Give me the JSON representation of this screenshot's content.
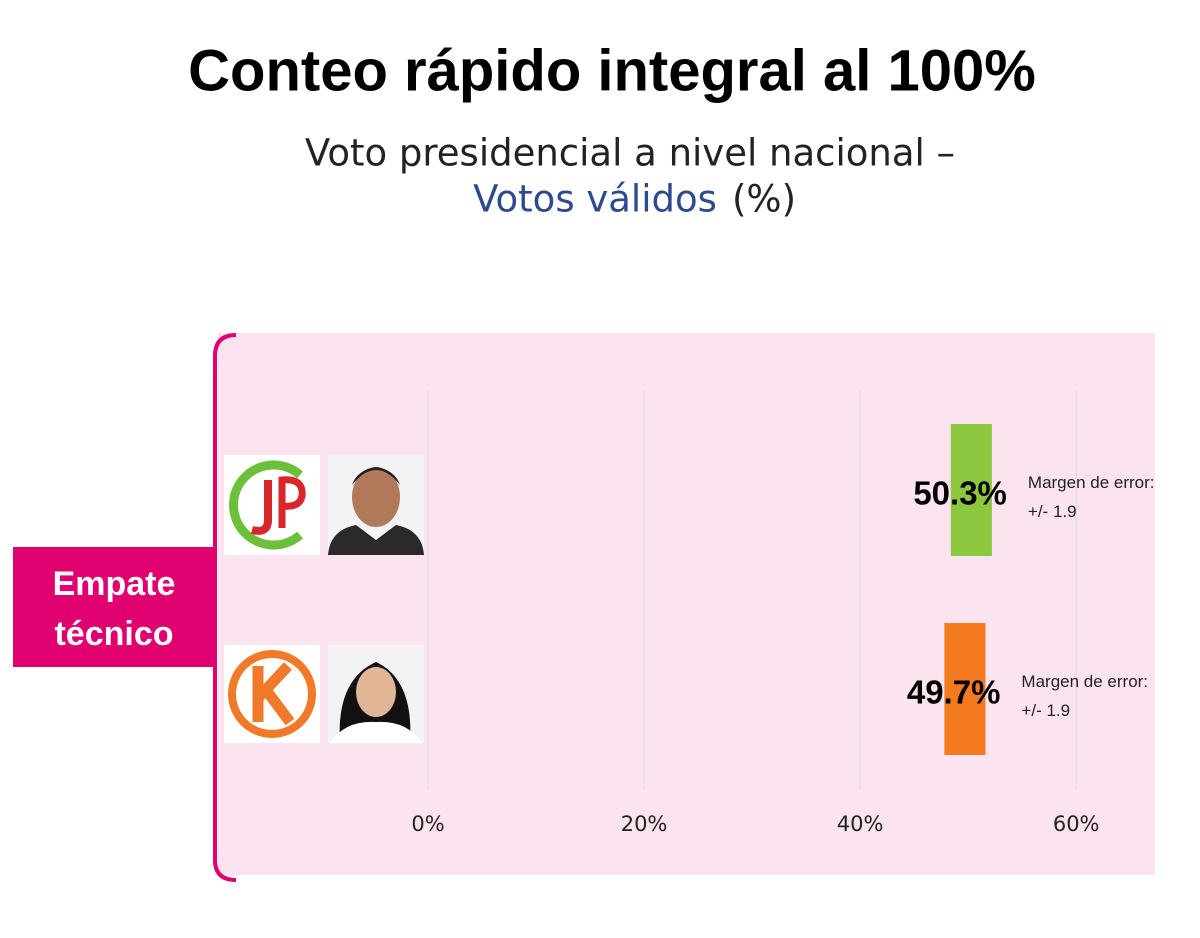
{
  "chart_data": {
    "type": "bar",
    "orientation": "horizontal",
    "title": "Conteo rápido integral al 100%",
    "subtitle": "Voto presidencial a nivel nacional –",
    "subtitle_highlight": "Votos válidos",
    "subtitle_unit": "(%)",
    "annotation": "Empate técnico",
    "categories": [
      null,
      null
    ],
    "values": [
      50.3,
      49.7
    ],
    "value_labels": [
      "50.3%",
      "49.7%"
    ],
    "errors": [
      1.9,
      1.9
    ],
    "error_labels": [
      "Margen de error: +/- 1.9",
      "Margen de error: +/- 1.9"
    ],
    "colors": [
      "#8dc63f",
      "#f47a20"
    ],
    "xlim": [
      0,
      66
    ],
    "xticks": [
      {
        "value": 0,
        "label": "0%"
      },
      {
        "value": 20,
        "label": "20%"
      },
      {
        "value": 40,
        "label": "40%"
      },
      {
        "value": 60,
        "label": "60%"
      }
    ],
    "grid": true
  }
}
